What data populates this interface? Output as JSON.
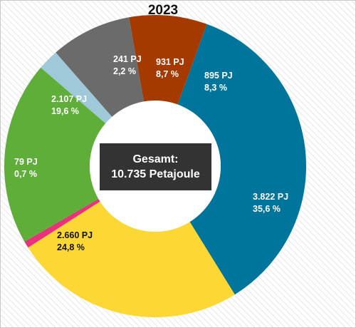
{
  "chart_data": {
    "type": "pie",
    "title": "2023",
    "center_text": {
      "line1": "Gesamt:",
      "line2": "10.735 Petajoule"
    },
    "slices": [
      {
        "value": 3822,
        "label": "3.822 PJ",
        "percent_label": "35,6 %",
        "color": "#00759c",
        "text_color": "#ffffff"
      },
      {
        "value": 2660,
        "label": "2.660 PJ",
        "percent_label": "24,8 %",
        "color": "#fdd835",
        "text_color": "#111111"
      },
      {
        "value": 79,
        "label": "79 PJ",
        "percent_label": "0,7 %",
        "color": "#e8327a",
        "text_color": "#ffffff"
      },
      {
        "value": 2107,
        "label": "2.107 PJ",
        "percent_label": "19,6 %",
        "color": "#5fae3a",
        "text_color": "#ffffff"
      },
      {
        "value": 241,
        "label": "241 PJ",
        "percent_label": "2,2 %",
        "color": "#9fc8d8",
        "text_color": "#ffffff"
      },
      {
        "value": 931,
        "label": "931 PJ",
        "percent_label": "8,7 %",
        "color": "#6b6b6b",
        "text_color": "#ffffff"
      },
      {
        "value": 895,
        "label": "895 PJ",
        "percent_label": "8,3 %",
        "color": "#a53a00",
        "text_color": "#ffffff"
      }
    ],
    "background_pattern": "diagonal-hatch"
  }
}
